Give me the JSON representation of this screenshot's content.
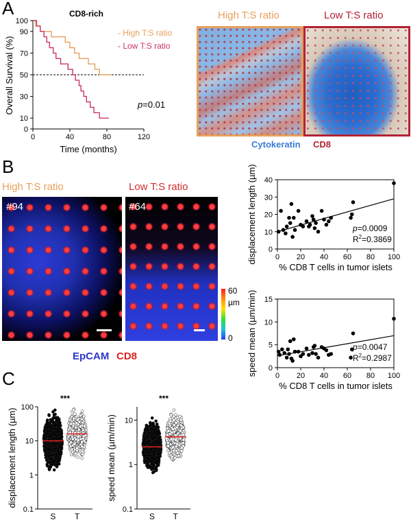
{
  "panels": {
    "a": "A",
    "b": "B",
    "c": "C"
  },
  "km": {
    "title": "CD8-rich",
    "ylabel": "Overall Survival (%)",
    "xlabel": "Time (months)",
    "pvalue_prefix": "p",
    "pvalue_rest": "=0.01",
    "legend_high": "- High T:S ratio",
    "legend_low": "- Low T:S ratio",
    "color_high": "#e8a05a",
    "color_low": "#cc3366",
    "x_ticks": [
      0,
      40,
      80,
      120
    ],
    "y_ticks": [
      0,
      10,
      30,
      50,
      70,
      90,
      100
    ],
    "xlim": [
      0,
      120
    ],
    "ylim": [
      0,
      100
    ],
    "median_line": 50,
    "high_curve": [
      [
        0,
        100
      ],
      [
        3,
        100
      ],
      [
        3,
        95
      ],
      [
        8,
        95
      ],
      [
        8,
        90
      ],
      [
        20,
        90
      ],
      [
        20,
        85
      ],
      [
        35,
        85
      ],
      [
        35,
        80
      ],
      [
        40,
        80
      ],
      [
        40,
        75
      ],
      [
        45,
        75
      ],
      [
        45,
        70
      ],
      [
        50,
        70
      ],
      [
        50,
        65
      ],
      [
        60,
        65
      ],
      [
        60,
        60
      ],
      [
        67,
        60
      ],
      [
        67,
        55
      ],
      [
        72,
        55
      ],
      [
        72,
        50
      ],
      [
        85,
        50
      ]
    ],
    "low_curve": [
      [
        0,
        100
      ],
      [
        4,
        100
      ],
      [
        4,
        95
      ],
      [
        8,
        95
      ],
      [
        8,
        90
      ],
      [
        12,
        90
      ],
      [
        12,
        85
      ],
      [
        15,
        85
      ],
      [
        15,
        80
      ],
      [
        18,
        80
      ],
      [
        18,
        75
      ],
      [
        22,
        75
      ],
      [
        22,
        70
      ],
      [
        25,
        70
      ],
      [
        25,
        65
      ],
      [
        30,
        65
      ],
      [
        30,
        60
      ],
      [
        38,
        60
      ],
      [
        38,
        55
      ],
      [
        43,
        55
      ],
      [
        43,
        50
      ],
      [
        46,
        50
      ],
      [
        46,
        45
      ],
      [
        50,
        45
      ],
      [
        50,
        40
      ],
      [
        52,
        40
      ],
      [
        52,
        35
      ],
      [
        55,
        35
      ],
      [
        55,
        30
      ],
      [
        58,
        30
      ],
      [
        58,
        25
      ],
      [
        62,
        25
      ],
      [
        62,
        20
      ],
      [
        66,
        20
      ],
      [
        66,
        15
      ],
      [
        72,
        15
      ],
      [
        72,
        10
      ],
      [
        82,
        10
      ]
    ]
  },
  "micro_a": {
    "high_label": "High T:S ratio",
    "low_label": "Low T:S ratio",
    "caption_left": "Cytokeratin",
    "caption_right": "CD8",
    "color_high": "#e8a05a",
    "color_low": "#b22234"
  },
  "panel_b": {
    "high_label": "High T:S ratio",
    "low_label": "Low T:S ratio",
    "id_high": "#94",
    "id_low": "#64",
    "colorbar_top": "60",
    "colorbar_unit": "µm",
    "colorbar_bottom": "0",
    "caption_left": "EpCAM",
    "caption_right": "CD8"
  },
  "chart_data": [
    {
      "type": "scatter",
      "title": "",
      "xlabel": "% CD8 T cells in tumor islets",
      "ylabel": "displacement length (µm)",
      "xlim": [
        0,
        100
      ],
      "ylim": [
        0,
        40
      ],
      "x_ticks": [
        0,
        20,
        40,
        60,
        80,
        100
      ],
      "y_ticks": [
        0,
        10,
        20,
        30,
        40
      ],
      "pvalue": "=0.0009",
      "r2": "=0.3869",
      "points": [
        [
          1,
          10
        ],
        [
          3,
          22
        ],
        [
          5,
          11
        ],
        [
          7,
          9
        ],
        [
          8,
          13
        ],
        [
          10,
          18
        ],
        [
          11,
          15
        ],
        [
          12,
          26
        ],
        [
          13,
          7
        ],
        [
          14,
          18
        ],
        [
          15,
          11
        ],
        [
          18,
          22
        ],
        [
          20,
          14
        ],
        [
          22,
          13
        ],
        [
          25,
          16
        ],
        [
          27,
          13
        ],
        [
          28,
          14
        ],
        [
          30,
          19
        ],
        [
          31,
          17
        ],
        [
          32,
          12
        ],
        [
          33,
          15
        ],
        [
          35,
          10
        ],
        [
          38,
          22
        ],
        [
          40,
          17
        ],
        [
          42,
          14
        ],
        [
          44,
          16
        ],
        [
          46,
          18
        ],
        [
          63,
          18
        ],
        [
          64,
          20
        ],
        [
          65,
          27
        ],
        [
          100,
          38
        ]
      ],
      "fit": [
        [
          0,
          10
        ],
        [
          100,
          29
        ]
      ]
    },
    {
      "type": "scatter",
      "title": "",
      "xlabel": "% CD8 T cells in tumor islets",
      "ylabel": "speed mean (µm/min)",
      "xlim": [
        0,
        100
      ],
      "ylim": [
        0,
        15
      ],
      "x_ticks": [
        0,
        20,
        40,
        60,
        80,
        100
      ],
      "y_ticks": [
        0,
        5,
        10,
        15
      ],
      "pvalue": "=0.0047",
      "r2": "=0.2987",
      "points": [
        [
          1,
          3.5
        ],
        [
          2,
          2.8
        ],
        [
          4,
          4
        ],
        [
          6,
          3.2
        ],
        [
          8,
          2.2
        ],
        [
          9,
          4
        ],
        [
          10,
          3
        ],
        [
          11,
          5.8
        ],
        [
          12,
          2
        ],
        [
          13,
          1.5
        ],
        [
          14,
          6.2
        ],
        [
          15,
          3.5
        ],
        [
          18,
          3.5
        ],
        [
          20,
          2.5
        ],
        [
          22,
          3
        ],
        [
          25,
          4.2
        ],
        [
          27,
          2.8
        ],
        [
          30,
          3.2
        ],
        [
          31,
          4.5
        ],
        [
          32,
          4.8
        ],
        [
          33,
          3
        ],
        [
          35,
          2.2
        ],
        [
          38,
          4.5
        ],
        [
          40,
          4.2
        ],
        [
          42,
          3.8
        ],
        [
          44,
          2.8
        ],
        [
          46,
          3
        ],
        [
          63,
          2.2
        ],
        [
          64,
          4
        ],
        [
          65,
          7.5
        ],
        [
          100,
          10.7
        ]
      ],
      "fit": [
        [
          0,
          2.6
        ],
        [
          100,
          7
        ]
      ]
    },
    {
      "type": "scatter",
      "title": "",
      "xlabel": "",
      "ylabel": "displacement length (µm)",
      "scale": "log",
      "ylim": [
        0.1,
        100
      ],
      "y_ticks": [
        "0.1",
        "1",
        "10",
        "100"
      ],
      "categories": [
        "S",
        "T"
      ],
      "medians": [
        10,
        16
      ],
      "significance": "***",
      "n_points_shown": [
        900,
        500
      ],
      "range_s": [
        0.4,
        80
      ],
      "range_t": [
        0.8,
        85
      ]
    },
    {
      "type": "scatter",
      "title": "",
      "xlabel": "",
      "ylabel": "speed mean (µm/min)",
      "scale": "log",
      "ylim": [
        0.1,
        20
      ],
      "y_ticks": [
        "0.1",
        "1",
        "10"
      ],
      "categories": [
        "S",
        "T"
      ],
      "medians": [
        2.5,
        4.2
      ],
      "significance": "***",
      "n_points_shown": [
        900,
        500
      ],
      "range_s": [
        0.3,
        15
      ],
      "range_t": [
        0.5,
        18
      ]
    }
  ]
}
